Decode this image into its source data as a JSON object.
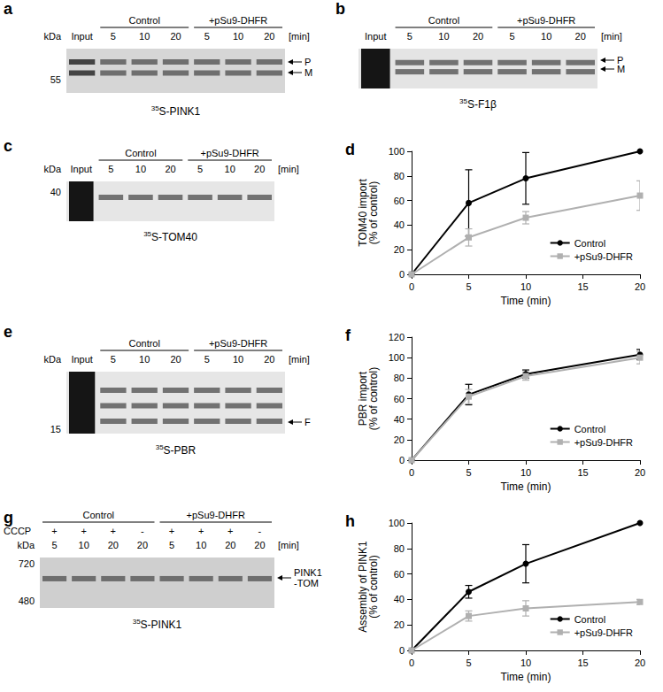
{
  "gels": [
    {
      "panel": "a",
      "input": "Input",
      "groups": [
        {
          "label": "Control",
          "times": [
            5,
            10,
            20
          ]
        },
        {
          "label": "+pSu9-DHFR",
          "times": [
            5,
            10,
            20
          ]
        }
      ],
      "time_unit": "[min]",
      "kda": "kDa",
      "markers": [
        55
      ],
      "arrows": [
        "P",
        "M"
      ],
      "caption_sup": "35",
      "caption": "S-PINK1"
    },
    {
      "panel": "b",
      "input": "Input",
      "groups": [
        {
          "label": "Control",
          "times": [
            5,
            10,
            20
          ]
        },
        {
          "label": "+pSu9-DHFR",
          "times": [
            5,
            10,
            20
          ]
        }
      ],
      "time_unit": "[min]",
      "markers": [],
      "arrows": [
        "P",
        "M"
      ],
      "caption_sup": "35",
      "caption": "S-F1β"
    },
    {
      "panel": "c",
      "input": "Input",
      "groups": [
        {
          "label": "Control",
          "times": [
            5,
            10,
            20
          ]
        },
        {
          "label": "+pSu9-DHFR",
          "times": [
            5,
            10,
            20
          ]
        }
      ],
      "time_unit": "[min]",
      "kda": "kDa",
      "markers": [
        40
      ],
      "arrows": [],
      "caption_sup": "35",
      "caption": "S-TOM40"
    },
    {
      "panel": "e",
      "input": "Input",
      "groups": [
        {
          "label": "Control",
          "times": [
            5,
            10,
            20
          ]
        },
        {
          "label": "+pSu9-DHFR",
          "times": [
            5,
            10,
            20
          ]
        }
      ],
      "time_unit": "[min]",
      "kda": "kDa",
      "markers": [
        15
      ],
      "arrows": [
        "F"
      ],
      "caption_sup": "35",
      "caption": "S-PBR"
    },
    {
      "panel": "g",
      "cccp_label": "CCCP",
      "groups": [
        {
          "label": "Control",
          "cccp": [
            "+",
            "+",
            "+",
            "-"
          ],
          "times": [
            5,
            10,
            20,
            20
          ]
        },
        {
          "label": "+pSu9-DHFR",
          "cccp": [
            "+",
            "+",
            "+",
            "-"
          ],
          "times": [
            5,
            10,
            20,
            20
          ]
        }
      ],
      "time_unit": "[min]",
      "kda": "kDa",
      "markers": [
        720,
        480
      ],
      "arrows": [
        [
          "PINK1",
          "-TOM"
        ]
      ],
      "caption_sup": "35",
      "caption": "S-PINK1"
    }
  ],
  "chart_data": [
    {
      "type": "line",
      "title": "d",
      "x_label": "Time (min)",
      "y_label": "TOM40 import (% of control)",
      "x": [
        0,
        5,
        10,
        20
      ],
      "xlim": [
        0,
        20
      ],
      "xticks": [
        0,
        5,
        10,
        15,
        20
      ],
      "ylim": [
        0,
        100
      ],
      "yticks": [
        0,
        20,
        40,
        60,
        80,
        100
      ],
      "grid": false,
      "legend": "lower right",
      "series": [
        {
          "name": "Control",
          "color": "#000000",
          "marker": "circle",
          "values": [
            0,
            58,
            78,
            100
          ],
          "errors": [
            0,
            27,
            21,
            0
          ]
        },
        {
          "name": "+pSu9-DHFR",
          "color": "#b0b0b0",
          "marker": "square",
          "values": [
            0,
            30,
            46,
            64
          ],
          "errors": [
            0,
            7,
            5,
            12
          ]
        }
      ]
    },
    {
      "type": "line",
      "title": "f",
      "x_label": "Time (min)",
      "y_label": "PBR import (% of control)",
      "x": [
        0,
        5,
        10,
        20
      ],
      "xlim": [
        0,
        20
      ],
      "xticks": [
        0,
        5,
        10,
        15,
        20
      ],
      "ylim": [
        0,
        120
      ],
      "yticks": [
        0,
        20,
        40,
        60,
        80,
        100,
        120
      ],
      "grid": false,
      "legend": "lower right",
      "series": [
        {
          "name": "Control",
          "color": "#000000",
          "marker": "circle",
          "values": [
            0,
            64,
            84,
            103
          ],
          "errors": [
            0,
            10,
            4,
            5
          ]
        },
        {
          "name": "+pSu9-DHFR",
          "color": "#b0b0b0",
          "marker": "square",
          "values": [
            0,
            62,
            82,
            100
          ],
          "errors": [
            0,
            7,
            4,
            6
          ]
        }
      ]
    },
    {
      "type": "line",
      "title": "h",
      "x_label": "Time (min)",
      "y_label": "Assembly of PINK1 (% of control)",
      "x": [
        0,
        5,
        10,
        20
      ],
      "xlim": [
        0,
        20
      ],
      "xticks": [
        0,
        5,
        10,
        15,
        20
      ],
      "ylim": [
        0,
        100
      ],
      "yticks": [
        0,
        20,
        40,
        60,
        80,
        100
      ],
      "grid": false,
      "legend": "lower right",
      "series": [
        {
          "name": "Control",
          "color": "#000000",
          "marker": "circle",
          "values": [
            0,
            46,
            68,
            100
          ],
          "errors": [
            0,
            5,
            15,
            0
          ]
        },
        {
          "name": "+pSu9-DHFR",
          "color": "#b0b0b0",
          "marker": "square",
          "values": [
            0,
            27,
            33,
            38
          ],
          "errors": [
            0,
            4,
            6,
            2
          ]
        }
      ]
    }
  ]
}
